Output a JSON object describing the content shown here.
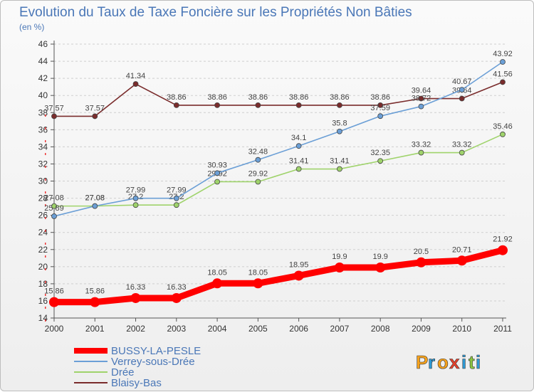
{
  "chart_data": {
    "type": "line",
    "title": "Evolution du Taux de Taxe Foncière sur les Propriétés Non Bâties",
    "ylabel": "(en %)",
    "x": [
      "2000",
      "2001",
      "2002",
      "2003",
      "2004",
      "2005",
      "2006",
      "2007",
      "2008",
      "2009",
      "2010",
      "2011"
    ],
    "ylim": [
      14,
      46
    ],
    "yticks": [
      14,
      16,
      18,
      20,
      22,
      24,
      26,
      28,
      30,
      32,
      34,
      36,
      38,
      40,
      42,
      44,
      46
    ],
    "grid": "horizontal dashed",
    "legend_position": "bottom-left",
    "series": [
      {
        "name": "BUSSY-LA-PESLE",
        "color": "#ff0000",
        "values": [
          15.86,
          15.86,
          16.33,
          16.33,
          18.05,
          18.05,
          18.95,
          19.9,
          19.9,
          20.5,
          20.71,
          21.92
        ],
        "labels": [
          "15.86",
          "15.86",
          "16.33",
          "16.33",
          "18.05",
          "18.05",
          "18.95",
          "19.9",
          "19.9",
          "20.5",
          "20.71",
          "21.92"
        ]
      },
      {
        "name": "Verrey-sous-Drée",
        "color": "#6b9fd6",
        "values": [
          25.89,
          27.08,
          27.99,
          27.99,
          30.93,
          32.48,
          34.1,
          35.8,
          37.59,
          38.72,
          40.67,
          43.92
        ],
        "labels": [
          "25.89",
          "27.08",
          "27.99",
          "27.99",
          "30.93",
          "32.48",
          "34.1",
          "35.8",
          "37.59",
          "38.72",
          "40.67",
          "43.92"
        ]
      },
      {
        "name": "Drée",
        "color": "#9fd36b",
        "values": [
          27.08,
          27.08,
          27.2,
          27.2,
          29.92,
          29.92,
          31.41,
          31.41,
          32.35,
          33.32,
          33.32,
          35.46
        ],
        "labels": [
          "27.08",
          "27.08",
          "27.2",
          "27.2",
          "29.92",
          "29.92",
          "31.41",
          "31.41",
          "32.35",
          "33.32",
          "33.32",
          "35.46"
        ]
      },
      {
        "name": "Blaisy-Bas",
        "color": "#7a2c2c",
        "values": [
          37.57,
          37.57,
          41.34,
          38.86,
          38.86,
          38.86,
          38.86,
          38.86,
          38.86,
          39.64,
          39.64,
          41.56
        ],
        "labels": [
          "37.57",
          "37.57",
          "41.34",
          "38.86",
          "38.86",
          "38.86",
          "38.86",
          "38.86",
          "38.86",
          "39.64",
          "39.64",
          "41.56"
        ]
      }
    ]
  },
  "brand": {
    "logo_letters": [
      "P",
      "r",
      "o",
      "x",
      "i",
      "t",
      "i"
    ],
    "logo_colors": [
      "#f7a21b",
      "#2e9ad6",
      "#f7a21b",
      "#e8412c",
      "#2e9ad6",
      "#8cc63f",
      "#2e9ad6"
    ]
  }
}
